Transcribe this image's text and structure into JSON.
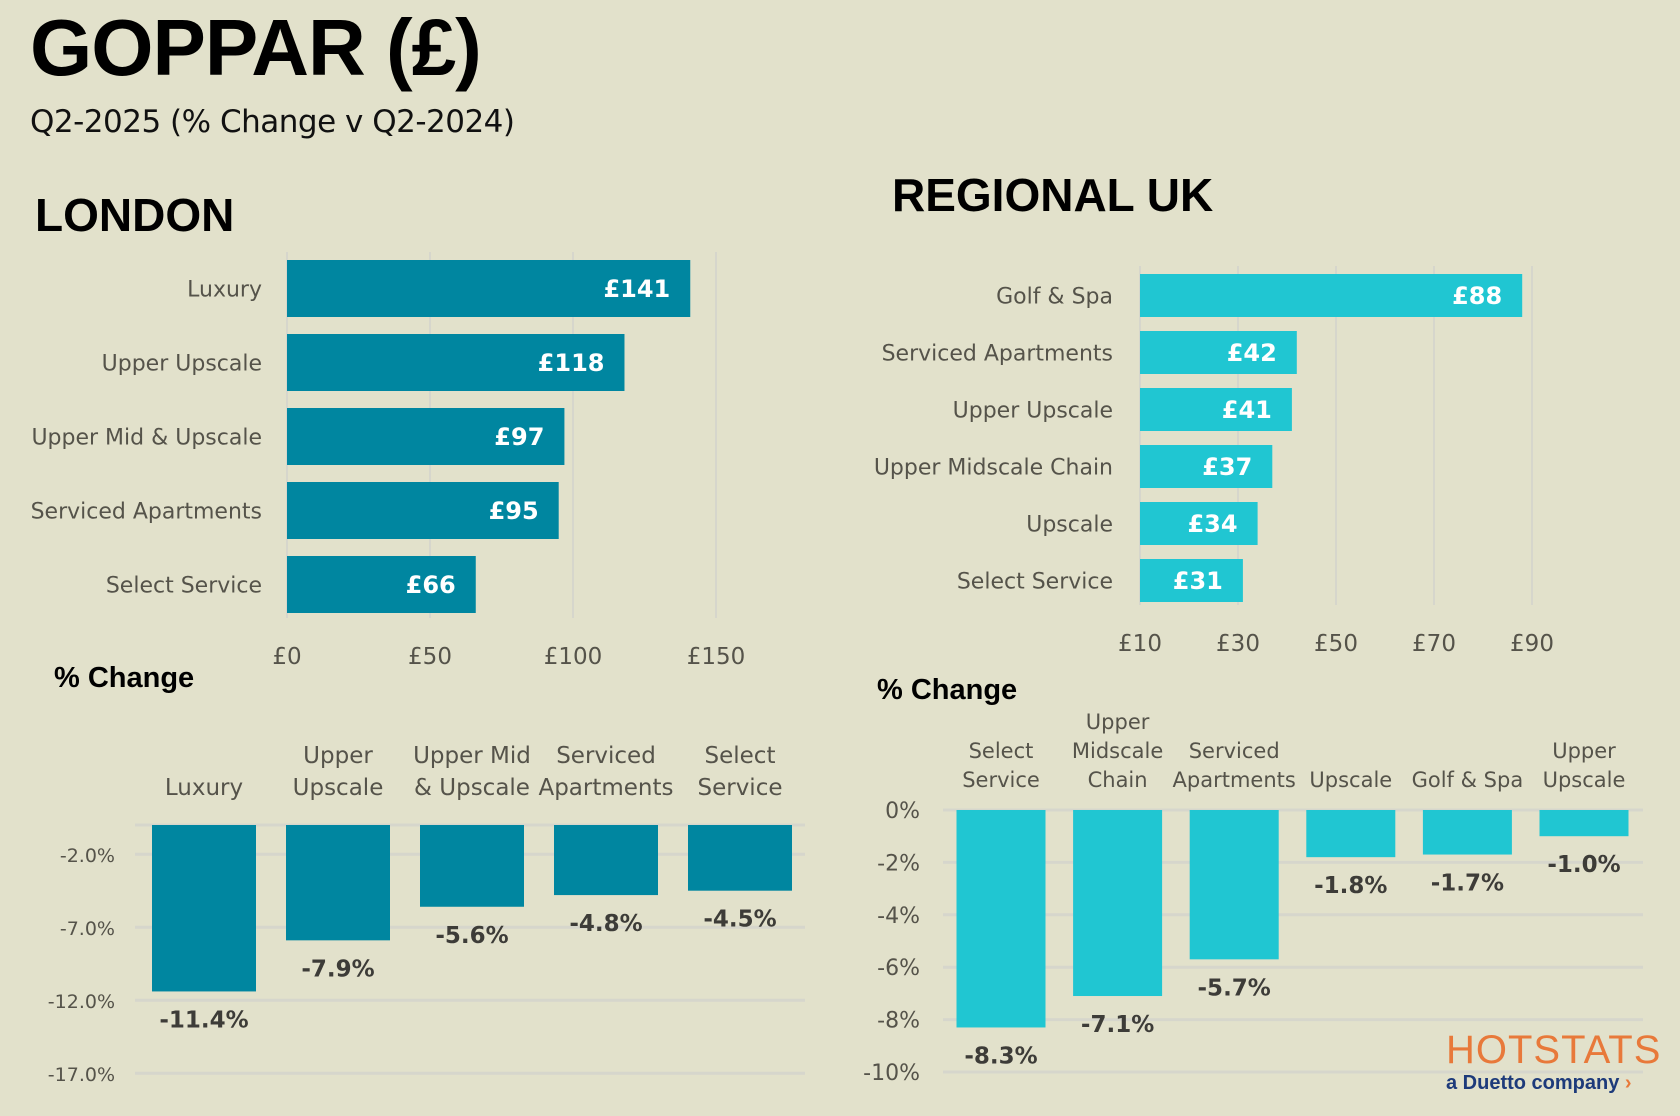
{
  "header": {
    "title": "GOPPAR (£)",
    "subtitle": "Q2-2025 (% Change v Q2-2024)"
  },
  "sections": {
    "london": "LONDON",
    "regional": "REGIONAL UK",
    "change_heading": "% Change"
  },
  "colors": {
    "london": "#0086a0",
    "regional": "#20c6d2",
    "background": "#e2e1cb",
    "grid": "#d6d6cc"
  },
  "logo": {
    "main": "HOTSTATS",
    "sub": "a Duetto company",
    "arrow": "›"
  },
  "chart_data": [
    {
      "id": "london-goppar",
      "type": "bar",
      "orientation": "horizontal",
      "title": "LONDON",
      "categories": [
        "Luxury",
        "Upper Upscale",
        "Upper Mid & Upscale",
        "Serviced Apartments",
        "Select Service"
      ],
      "values": [
        141,
        118,
        97,
        95,
        66
      ],
      "data_labels": [
        "£141",
        "£118",
        "£97",
        "£95",
        "£66"
      ],
      "xlim": [
        0,
        150
      ],
      "xticks": [
        0,
        50,
        100,
        150
      ],
      "xtick_labels": [
        "£0",
        "£50",
        "£100",
        "£150"
      ],
      "grid": true
    },
    {
      "id": "regional-goppar",
      "type": "bar",
      "orientation": "horizontal",
      "title": "REGIONAL UK",
      "categories": [
        "Golf & Spa",
        "Serviced Apartments",
        "Upper Upscale",
        "Upper Midscale Chain",
        "Upscale",
        "Select Service"
      ],
      "values": [
        88,
        42,
        41,
        37,
        34,
        31
      ],
      "data_labels": [
        "£88",
        "£42",
        "£41",
        "£37",
        "£34",
        "£31"
      ],
      "xlim": [
        10,
        90
      ],
      "xticks": [
        10,
        30,
        50,
        70,
        90
      ],
      "xtick_labels": [
        "£10",
        "£30",
        "£50",
        "£70",
        "£90"
      ],
      "grid": true
    },
    {
      "id": "london-change",
      "type": "bar",
      "orientation": "vertical",
      "title": "% Change",
      "categories": [
        [
          "Luxury"
        ],
        [
          "Upper",
          "Upscale"
        ],
        [
          "Upper Mid",
          "& Upscale"
        ],
        [
          "Serviced",
          "Apartments"
        ],
        [
          "Select",
          "Service"
        ]
      ],
      "values": [
        -11.4,
        -7.9,
        -5.6,
        -4.8,
        -4.5
      ],
      "data_labels": [
        "-11.4%",
        "-7.9%",
        "-5.6%",
        "-4.8%",
        "-4.5%"
      ],
      "ylim": [
        -17,
        0
      ],
      "yticks": [
        -2,
        -7,
        -12,
        -17
      ],
      "ytick_labels": [
        "-2.0%",
        "-7.0%",
        "-12.0%",
        "-17.0%"
      ],
      "grid": true
    },
    {
      "id": "regional-change",
      "type": "bar",
      "orientation": "vertical",
      "title": "% Change",
      "categories": [
        [
          "Select",
          "Service"
        ],
        [
          "Upper",
          "Midscale",
          "Chain"
        ],
        [
          "Serviced",
          "Apartments"
        ],
        [
          "Upscale"
        ],
        [
          "Golf & Spa"
        ],
        [
          "Upper",
          "Upscale"
        ]
      ],
      "values": [
        -8.3,
        -7.1,
        -5.7,
        -1.8,
        -1.7,
        -1.0
      ],
      "data_labels": [
        "-8.3%",
        "-7.1%",
        "-5.7%",
        "-1.8%",
        "-1.7%",
        "-1.0%"
      ],
      "ylim": [
        -10,
        0
      ],
      "yticks": [
        0,
        -2,
        -4,
        -6,
        -8,
        -10
      ],
      "ytick_labels": [
        "0%",
        "-2%",
        "-4%",
        "-6%",
        "-8%",
        "-10%"
      ],
      "grid": true
    }
  ]
}
